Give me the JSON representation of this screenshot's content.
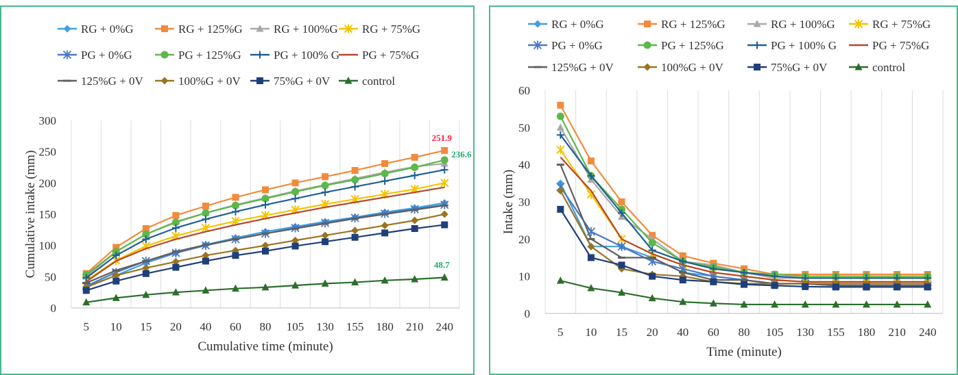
{
  "charts": {
    "left": {
      "chart_data": {
        "type": "line",
        "categories": [
          "5",
          "10",
          "15",
          "20",
          "40",
          "60",
          "80",
          "105",
          "130",
          "155",
          "180",
          "210",
          "240"
        ],
        "xlabel": "Cumulative time (minute)",
        "ylabel": "Cumulative intake (mm)",
        "ylim": [
          0,
          300
        ],
        "yticks": [
          0,
          50,
          100,
          150,
          200,
          250,
          300
        ],
        "grid": "vertical",
        "legend": "top",
        "annotations": [
          {
            "text": "251.9",
            "series": "RG + 125%G",
            "color": "#ff1f3d"
          },
          {
            "text": "236.6",
            "series": "PG + 125%G",
            "color": "#22a86b"
          },
          {
            "text": "48.7",
            "series": "control",
            "color": "#22a86b"
          }
        ],
        "series": [
          {
            "name": "RG + 0%G",
            "color": "#3f9fe0",
            "marker": "diamond",
            "values": [
              34,
              52,
              72,
              88,
              101,
              112,
              122,
              130,
              138,
              145,
              153,
              160,
              168
            ]
          },
          {
            "name": "RG + 125%G",
            "color": "#f28a3c",
            "marker": "square",
            "values": [
              55,
              97,
              127,
              148,
              163,
              177,
              189,
              200,
              210,
              220,
              231,
              241,
              251.9
            ]
          },
          {
            "name": "RG + 100%G",
            "color": "#a8a8a8",
            "marker": "triangle",
            "values": [
              50,
              90,
              118,
              138,
              152,
              165,
              176,
              187,
              197,
              207,
              217,
              226,
              231
            ]
          },
          {
            "name": "RG + 75%G",
            "color": "#f5c400",
            "marker": "star",
            "values": [
              44,
              76,
              99,
              115,
              128,
              139,
              148,
              157,
              166,
              174,
              182,
              190,
              200
            ]
          },
          {
            "name": "PG + 0%G",
            "color": "#4a78c4",
            "marker": "x",
            "values": [
              35,
              57,
              75,
              88,
              100,
              110,
              119,
              128,
              136,
              144,
              151,
              158,
              165
            ]
          },
          {
            "name": "PG + 125%G",
            "color": "#5cb84a",
            "marker": "circle",
            "values": [
              53,
              90,
              118,
              137,
              152,
              164,
              175,
              186,
              196,
              205,
              215,
              225,
              236.6
            ]
          },
          {
            "name": "PG + 100% G",
            "color": "#1f5e96",
            "marker": "plus",
            "values": [
              48,
              84,
              110,
              128,
              142,
              154,
              165,
              175,
              185,
              194,
              203,
              212,
              221
            ]
          },
          {
            "name": "PG + 75%G",
            "color": "#b5472a",
            "marker": "none",
            "values": [
              42,
              75,
              95,
              110,
              122,
              133,
              143,
              152,
              161,
              169,
              177,
              185,
              193
            ]
          },
          {
            "name": "125%G + 0V",
            "color": "#5f5f5f",
            "marker": "dash",
            "values": [
              40,
              60,
              75,
              90,
              101,
              110,
              119,
              127,
              135,
              143,
              150,
              157,
              164
            ]
          },
          {
            "name": "100%G + 0V",
            "color": "#9b7420",
            "marker": "diamond",
            "values": [
              33,
              52,
              64,
              74,
              84,
              92,
              100,
              108,
              116,
              124,
              132,
              140,
              150
            ]
          },
          {
            "name": "75%G + 0V",
            "color": "#1f3f7a",
            "marker": "square",
            "values": [
              28,
              43,
              55,
              65,
              75,
              84,
              91,
              99,
              106,
              113,
              120,
              127,
              133
            ]
          },
          {
            "name": "control",
            "color": "#2b6e2b",
            "marker": "triangle",
            "values": [
              9,
              16,
              21,
              25,
              28,
              31,
              33,
              36,
              39,
              41,
              44,
              46,
              48.7
            ]
          }
        ]
      }
    },
    "right": {
      "chart_data": {
        "type": "line",
        "categories": [
          "5",
          "10",
          "15",
          "20",
          "40",
          "60",
          "80",
          "105",
          "130",
          "155",
          "180",
          "210",
          "240"
        ],
        "xlabel": "Time (minute)",
        "ylabel": "Intake (mm)",
        "ylim": [
          0,
          60
        ],
        "yticks": [
          0,
          10,
          20,
          30,
          40,
          50,
          60
        ],
        "grid": "vertical",
        "legend": "top",
        "series": [
          {
            "name": "RG + 0%G",
            "color": "#3f9fe0",
            "marker": "diamond",
            "values": [
              35,
              18,
              18,
              15,
              11,
              10,
              9,
              8,
              8,
              7.5,
              7.5,
              7.5,
              7.5
            ]
          },
          {
            "name": "RG + 125%G",
            "color": "#f28a3c",
            "marker": "square",
            "values": [
              56,
              41,
              30,
              21,
              15.5,
              13.5,
              12,
              10.5,
              10.5,
              10.5,
              10.5,
              10.5,
              10.5
            ]
          },
          {
            "name": "RG + 100%G",
            "color": "#a8a8a8",
            "marker": "triangle",
            "values": [
              50,
              36,
              26,
              20,
              14,
              13,
              11,
              9.5,
              9.5,
              9.5,
              9.5,
              9.5,
              9.5
            ]
          },
          {
            "name": "RG + 75%G",
            "color": "#f5c400",
            "marker": "star",
            "values": [
              44,
              32,
              20,
              16,
              13,
              11,
              10,
              9,
              8.5,
              8.5,
              8.5,
              8.5,
              8.5
            ]
          },
          {
            "name": "PG + 0%G",
            "color": "#4a78c4",
            "marker": "x",
            "values": [
              34,
              22,
              18,
              14,
              12,
              10,
              9,
              8,
              8,
              7.5,
              7.5,
              7.5,
              7.5
            ]
          },
          {
            "name": "PG + 125%G",
            "color": "#5cb84a",
            "marker": "circle",
            "values": [
              53,
              37,
              28,
              19,
              14,
              12.5,
              11,
              10.5,
              10,
              10,
              10,
              10,
              10
            ]
          },
          {
            "name": "PG + 100% G",
            "color": "#1f5e96",
            "marker": "plus",
            "values": [
              48,
              37,
              27,
              17,
              14,
              12,
              11,
              10,
              9.5,
              9.5,
              9.5,
              9.5,
              9.5
            ]
          },
          {
            "name": "PG + 75%G",
            "color": "#b5472a",
            "marker": "none",
            "values": [
              42,
              33,
              20,
              16,
              13,
              11,
              10,
              9,
              8.5,
              8.5,
              8.5,
              8.5,
              8.5
            ]
          },
          {
            "name": "125%G + 0V",
            "color": "#5f5f5f",
            "marker": "dash",
            "values": [
              40,
              20,
              15,
              15,
              11,
              9,
              9,
              8,
              8,
              7.5,
              7.5,
              7.5,
              7.5
            ]
          },
          {
            "name": "100%G + 0V",
            "color": "#9b7420",
            "marker": "diamond",
            "values": [
              33,
              18,
              12,
              10.5,
              10,
              8.5,
              8,
              8,
              8,
              8,
              8,
              8,
              8
            ]
          },
          {
            "name": "75%G + 0V",
            "color": "#1f3f7a",
            "marker": "square",
            "values": [
              28,
              15,
              13,
              10,
              9,
              8.5,
              7.8,
              7.5,
              7.2,
              7.1,
              7.1,
              7.1,
              7.1
            ]
          },
          {
            "name": "control",
            "color": "#2b6e2b",
            "marker": "triangle",
            "values": [
              8.8,
              6.8,
              5.6,
              4.1,
              3.1,
              2.7,
              2.4,
              2.4,
              2.4,
              2.4,
              2.4,
              2.4,
              2.4
            ]
          }
        ]
      }
    }
  }
}
